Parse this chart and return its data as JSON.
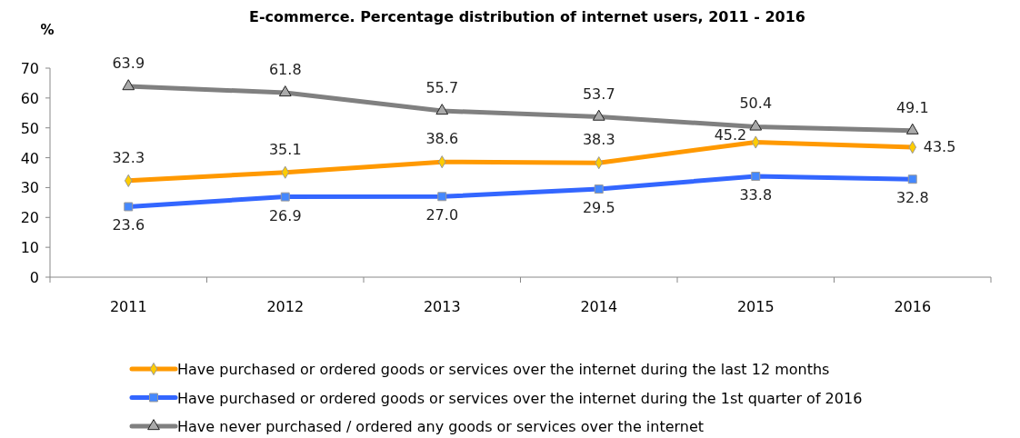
{
  "chart_data": {
    "type": "line",
    "title": "E-commerce. Percentage distribution of internet users, 2011 - 2016",
    "ylabel": "%",
    "categories": [
      "2011",
      "2012",
      "2013",
      "2014",
      "2015",
      "2016"
    ],
    "series": [
      {
        "name": "Have purchased or ordered goods or services over the internet during the last 12 months",
        "color": "#ff9900",
        "marker": "diamond",
        "values": [
          32.3,
          35.1,
          38.6,
          38.3,
          45.2,
          43.5
        ],
        "value_labels": [
          "32.3",
          "35.1",
          "38.6",
          "38.3",
          "45.2",
          "43.5"
        ]
      },
      {
        "name": "Have purchased or ordered goods or services over the internet during the 1st quarter of 2016",
        "color": "#3366ff",
        "marker": "square",
        "values": [
          23.6,
          26.9,
          27.0,
          29.5,
          33.8,
          32.8
        ],
        "value_labels": [
          "23.6",
          "26.9",
          "27.0",
          "29.5",
          "33.8",
          "32.8"
        ]
      },
      {
        "name": "Have never purchased / ordered any goods or services over the internet",
        "color": "#808080",
        "marker": "triangle",
        "values": [
          63.9,
          61.8,
          55.7,
          53.7,
          50.4,
          49.1
        ],
        "value_labels": [
          "63.9",
          "61.8",
          "55.7",
          "53.7",
          "50.4",
          "49.1"
        ]
      }
    ],
    "ylim": [
      0,
      70
    ],
    "yticks": [
      0,
      10,
      20,
      30,
      40,
      50,
      60,
      70
    ],
    "legend": "bottom",
    "grid": false,
    "line_style": "solid"
  }
}
